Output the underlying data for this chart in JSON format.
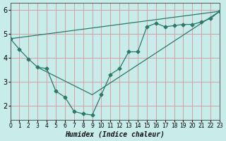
{
  "xlabel": "Humidex (Indice chaleur)",
  "bg_color": "#c8ecea",
  "line_color": "#2a7a6a",
  "grid_color_major": "#d4a0a0",
  "xlim": [
    0,
    23
  ],
  "ylim": [
    1.4,
    6.3
  ],
  "yticks": [
    2,
    3,
    4,
    5,
    6
  ],
  "xticks": [
    0,
    1,
    2,
    3,
    4,
    5,
    6,
    7,
    8,
    9,
    10,
    11,
    12,
    13,
    14,
    15,
    16,
    17,
    18,
    19,
    20,
    21,
    22,
    23
  ],
  "line1_x": [
    0,
    1,
    2,
    3,
    4,
    5,
    6,
    7,
    8,
    9,
    10,
    11,
    12,
    13,
    14,
    15,
    16,
    17,
    18,
    19,
    20,
    21,
    22,
    23
  ],
  "line1_y": [
    4.8,
    4.35,
    3.95,
    3.6,
    3.55,
    2.6,
    2.35,
    1.75,
    1.65,
    1.6,
    2.45,
    3.3,
    3.55,
    4.25,
    4.25,
    5.3,
    5.45,
    5.3,
    5.35,
    5.4,
    5.4,
    5.5,
    5.65,
    5.95
  ],
  "line2_x": [
    0,
    23
  ],
  "line2_y": [
    4.8,
    5.95
  ],
  "line3_x": [
    3,
    9,
    23
  ],
  "line3_y": [
    3.6,
    2.45,
    5.95
  ]
}
